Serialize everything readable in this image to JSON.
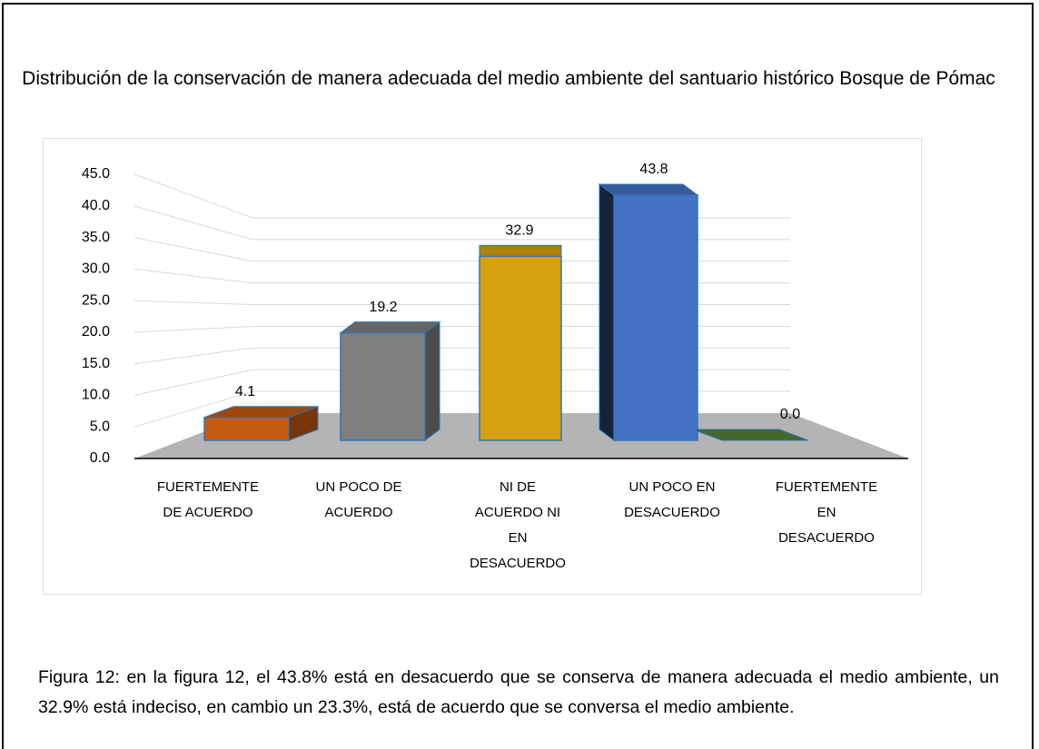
{
  "chart_data": {
    "type": "bar3d",
    "title": "Distribución de la conservación de manera adecuada del medio ambiente del santuario histórico Bosque de Pómac",
    "categories": [
      "FUERTEMENTE DE ACUERDO",
      "UN POCO DE ACUERDO",
      "NI DE ACUERDO NI EN DESACUERDO",
      "UN POCO EN DESACUERDO",
      "FUERTEMENTE EN DESACUERDO"
    ],
    "values": [
      4.1,
      19.2,
      32.9,
      43.8,
      0
    ],
    "value_labels": [
      "4.1",
      "19.2",
      "32.9",
      "43.8",
      "0.0"
    ],
    "colors": [
      "#c55a11",
      "#7f7f7f",
      "#d4a20f",
      "#4472c4",
      "#548235"
    ],
    "ylim": [
      0,
      45
    ],
    "yticks": [
      {
        "value": 0,
        "label": "0.0"
      },
      {
        "value": 5,
        "label": "5.0"
      },
      {
        "value": 10,
        "label": "10.0"
      },
      {
        "value": 15,
        "label": "15.0"
      },
      {
        "value": 20,
        "label": "20.0"
      },
      {
        "value": 25,
        "label": "25.0"
      },
      {
        "value": 30,
        "label": "30.0"
      },
      {
        "value": 35,
        "label": "35.0"
      },
      {
        "value": 40,
        "label": "40.0"
      },
      {
        "value": 45,
        "label": "45.0"
      }
    ],
    "grid": true,
    "caption": "Figura 12: en la figura 12, el 43.8% está en desacuerdo que se conserva de manera adecuada el medio ambiente, un 32.9% está indeciso, en cambio un 23.3%, está de acuerdo que se conversa el medio ambiente."
  }
}
